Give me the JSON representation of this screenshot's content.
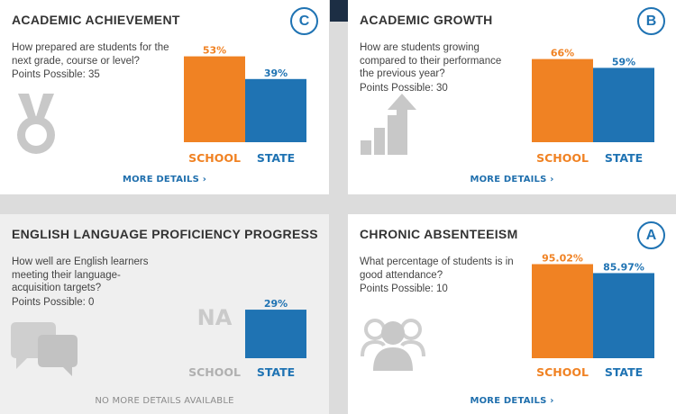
{
  "cards": [
    {
      "title": "ACADEMIC ACHIEVEMENT",
      "grade": "C",
      "question": "How prepared are students for the next grade, course or level?",
      "points": "Points Possible: 35",
      "details": "MORE DETAILS",
      "icon": "medal-icon",
      "chart_data": {
        "type": "bar",
        "categories": [
          "SCHOOL",
          "STATE"
        ],
        "values": [
          53,
          39
        ],
        "value_labels": [
          "53%",
          "39%"
        ],
        "colors": [
          "#f08223",
          "#1f73b3"
        ],
        "ylim": [
          0,
          100
        ]
      }
    },
    {
      "title": "ACADEMIC GROWTH",
      "grade": "B",
      "question": "How are students growing compared to their performance the previous year?",
      "points": "Points Possible: 30",
      "details": "MORE DETAILS",
      "icon": "growth-arrow-icon",
      "chart_data": {
        "type": "bar",
        "categories": [
          "SCHOOL",
          "STATE"
        ],
        "values": [
          66,
          59
        ],
        "value_labels": [
          "66%",
          "59%"
        ],
        "colors": [
          "#f08223",
          "#1f73b3"
        ],
        "ylim": [
          0,
          100
        ]
      }
    },
    {
      "title": "ENGLISH LANGUAGE PROFICIENCY PROGRESS",
      "question": "How well are English learners meeting their language-acquisition targets?",
      "points": "Points Possible: 0",
      "details": "NO MORE DETAILS AVAILABLE",
      "icon": "speech-bubbles-icon",
      "na_label": "NA",
      "chart_data": {
        "type": "bar",
        "categories": [
          "SCHOOL",
          "STATE"
        ],
        "values": [
          null,
          29
        ],
        "value_labels": [
          "",
          "29%"
        ],
        "colors": [
          "#f08223",
          "#1f73b3"
        ],
        "ylim": [
          0,
          100
        ]
      }
    },
    {
      "title": "CHRONIC ABSENTEEISM",
      "grade": "A",
      "question": "What percentage of students is in good attendance?",
      "points": "Points Possible: 10",
      "details": "MORE DETAILS",
      "icon": "people-icon",
      "chart_data": {
        "type": "bar",
        "categories": [
          "SCHOOL",
          "STATE"
        ],
        "values": [
          95.02,
          85.97
        ],
        "value_labels": [
          "95.02%",
          "85.97%"
        ],
        "colors": [
          "#f08223",
          "#1f73b3"
        ],
        "ylim": [
          0,
          100
        ]
      }
    }
  ],
  "colors": {
    "school": "#f08223",
    "state": "#1f73b3",
    "link": "#1f6fad",
    "icon": "#c8c8c8"
  }
}
